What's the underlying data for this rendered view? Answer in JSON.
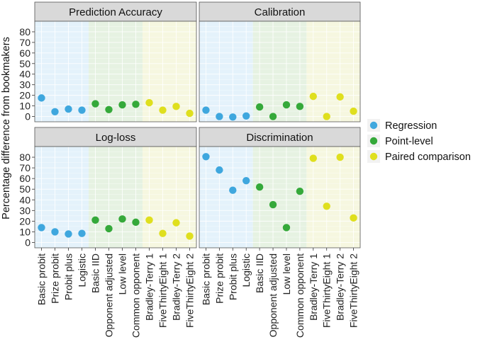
{
  "chart_data": {
    "type": "scatter",
    "ylabel": "Percentage difference from bookmakers",
    "xlabel": "",
    "ylim": [
      -5,
      90
    ],
    "yticks": [
      0,
      10,
      20,
      30,
      40,
      50,
      60,
      70,
      80
    ],
    "grid": true,
    "categories": [
      "Basic probit",
      "Prize probit",
      "Probit plus",
      "Logistic",
      "Basic IID",
      "Opponent adjusted",
      "Low  level",
      "Common  opponent",
      "Bradley-Terry 1",
      "FiveThirtyEight 1",
      "Bradley-Terry 2",
      "FiveThirtyEight 2"
    ],
    "groups": [
      {
        "name": "Regression",
        "color": "#3fa7de",
        "bg": "#e4f2fb",
        "count": 4
      },
      {
        "name": "Point-level",
        "color": "#35a93a",
        "bg": "#e6f2e2",
        "count": 4
      },
      {
        "name": "Paired comparison",
        "color": "#dfdf1e",
        "bg": "#f6f7e0",
        "count": 4
      }
    ],
    "legend": {
      "position": "right",
      "entries": [
        "Regression",
        "Point-level",
        "Paired comparison"
      ]
    },
    "panels": [
      {
        "title": "Prediction Accuracy",
        "values": [
          17.5,
          4.5,
          7,
          6,
          12,
          6.5,
          11,
          11.5,
          13,
          6,
          9.5,
          3
        ]
      },
      {
        "title": "Calibration",
        "values": [
          6,
          0,
          -0.5,
          0.5,
          9,
          0,
          11,
          9.5,
          19,
          0,
          18.5,
          5
        ]
      },
      {
        "title": "Log-loss",
        "values": [
          14,
          10,
          8,
          8.5,
          21,
          13,
          22,
          19,
          21,
          8.5,
          18.5,
          6
        ]
      },
      {
        "title": "Discrimination",
        "values": [
          80.5,
          68,
          49,
          58,
          52,
          35.5,
          14,
          48,
          79,
          34,
          80,
          23
        ]
      }
    ]
  }
}
